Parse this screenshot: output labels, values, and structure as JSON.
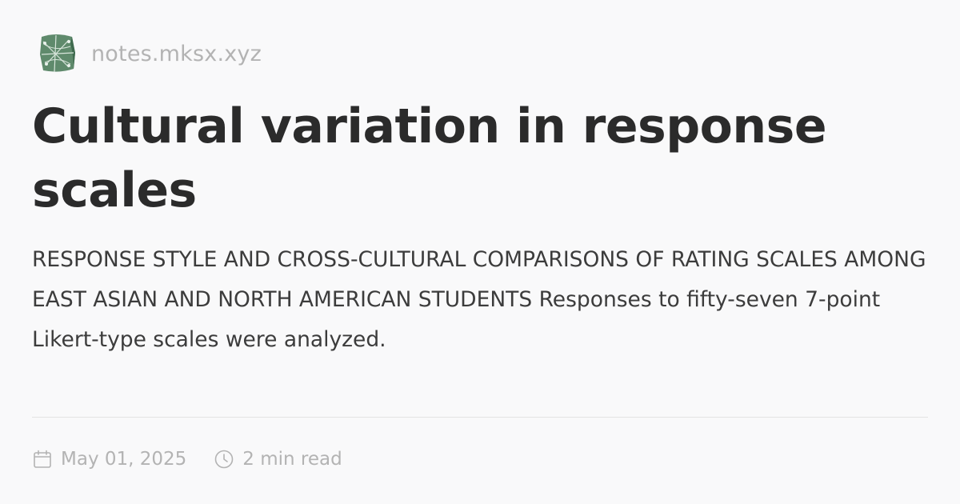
{
  "site": {
    "logo_icon": "site-logo-icon",
    "name": "notes.mksx.xyz"
  },
  "article": {
    "title": "Cultural variation in response scales",
    "summary": "RESPONSE STYLE AND CROSS-CULTURAL COMPARISONS OF RATING SCALES AMONG EAST ASIAN AND NORTH AMERICAN STUDENTS Responses to fifty-seven 7-point Likert-type scales were analyzed."
  },
  "meta": {
    "date_icon": "calendar-icon",
    "date": "May 01, 2025",
    "read_icon": "clock-icon",
    "read_time": "2 min read"
  },
  "colors": {
    "background": "#f9f9fa",
    "title": "#2b2b2b",
    "summary": "#3c3c3c",
    "muted": "#b3b3b3",
    "logo": "#5f8a6c"
  }
}
